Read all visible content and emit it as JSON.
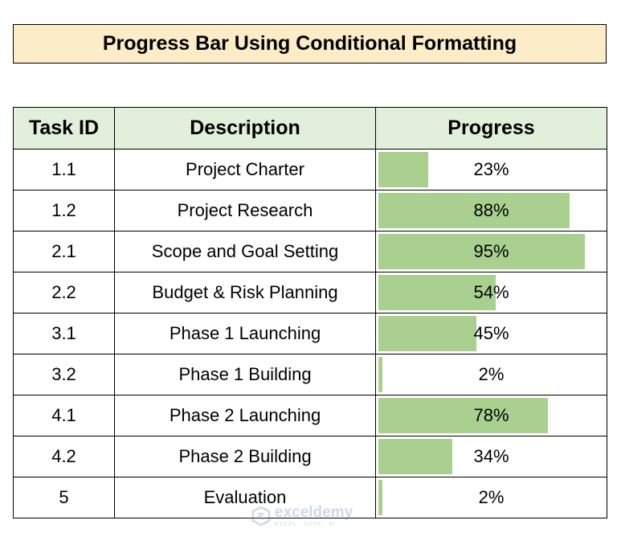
{
  "title": "Progress Bar Using Conditional Formatting",
  "bar_color": "#a9d08e",
  "header_color": "#e2efda",
  "title_color": "#fcecc8",
  "columns": [
    "Task ID",
    "Description",
    "Progress"
  ],
  "rows": [
    {
      "id": "1.1",
      "description": "Project Charter",
      "progress": "23%",
      "value": 23
    },
    {
      "id": "1.2",
      "description": "Project Research",
      "progress": "88%",
      "value": 88
    },
    {
      "id": "2.1",
      "description": "Scope and Goal Setting",
      "progress": "95%",
      "value": 95
    },
    {
      "id": "2.2",
      "description": "Budget & Risk Planning",
      "progress": "54%",
      "value": 54
    },
    {
      "id": "3.1",
      "description": "Phase 1 Launching",
      "progress": "45%",
      "value": 45
    },
    {
      "id": "3.2",
      "description": "Phase 1 Building",
      "progress": "2%",
      "value": 2
    },
    {
      "id": "4.1",
      "description": "Phase 2 Launching",
      "progress": "78%",
      "value": 78
    },
    {
      "id": "4.2",
      "description": "Phase 2 Building",
      "progress": "34%",
      "value": 34
    },
    {
      "id": "5",
      "description": "Evaluation",
      "progress": "2%",
      "value": 2
    }
  ],
  "watermark": {
    "name": "exceldemy",
    "tagline": "EXCEL · DATA · BI"
  }
}
